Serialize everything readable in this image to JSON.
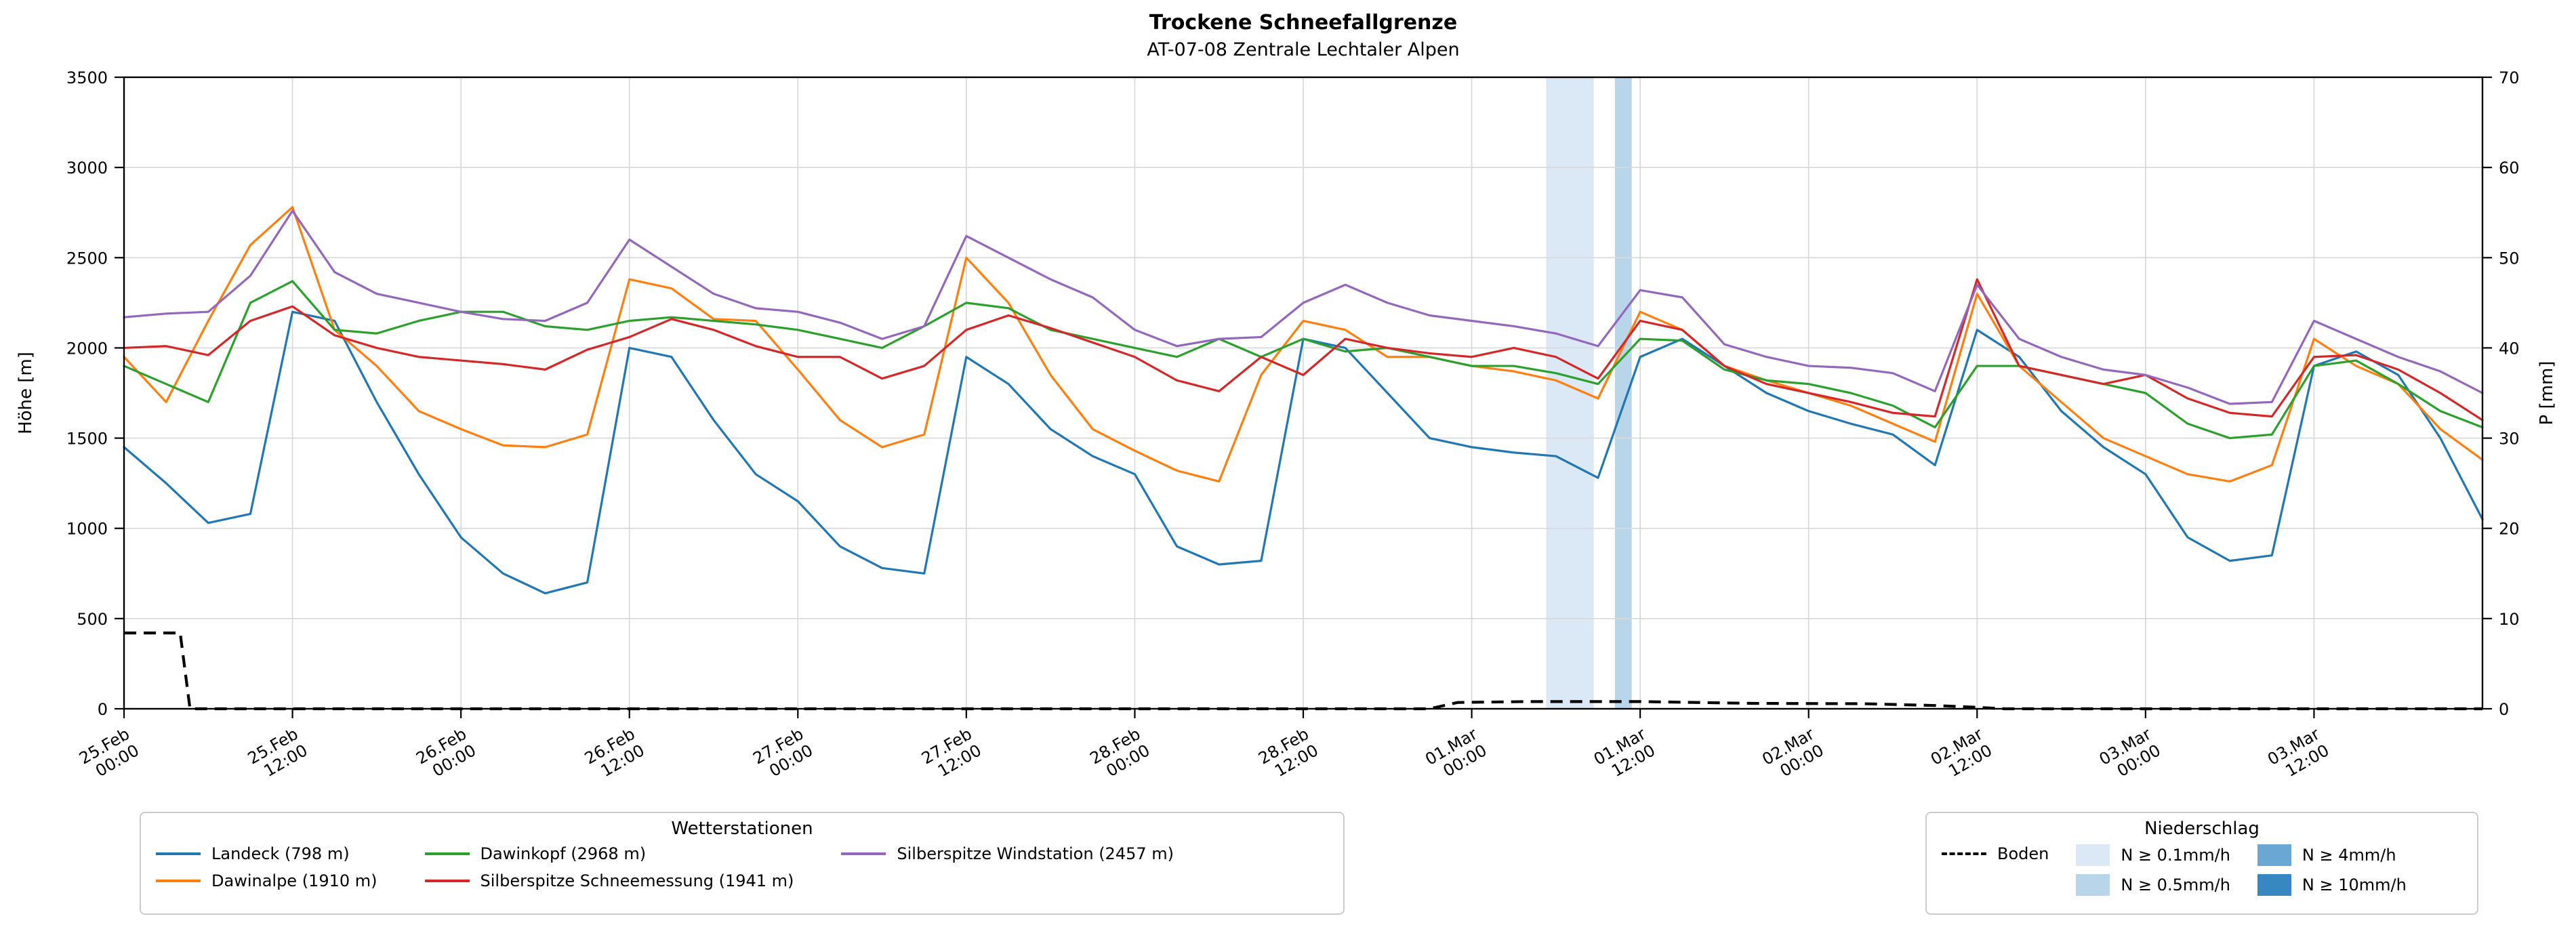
{
  "chart": {
    "title": "Trockene Schneefallgrenze",
    "subtitle": "AT-07-08 Zentrale Lechtaler Alpen",
    "y_left": {
      "label": "Höhe [m]",
      "min": 0,
      "max": 3500,
      "ticks": [
        0,
        500,
        1000,
        1500,
        2000,
        2500,
        3000,
        3500
      ]
    },
    "y_right": {
      "label": "P [mm]",
      "min": 0,
      "max": 70,
      "ticks": [
        0,
        10,
        20,
        30,
        40,
        50,
        60,
        70
      ]
    },
    "x": {
      "min_hours": 0,
      "max_hours": 168,
      "tick_step_hours": 12,
      "tick_labels": [
        [
          "25.Feb",
          "00:00"
        ],
        [
          "25.Feb",
          "12:00"
        ],
        [
          "26.Feb",
          "00:00"
        ],
        [
          "26.Feb",
          "12:00"
        ],
        [
          "27.Feb",
          "00:00"
        ],
        [
          "27.Feb",
          "12:00"
        ],
        [
          "28.Feb",
          "00:00"
        ],
        [
          "28.Feb",
          "12:00"
        ],
        [
          "01.Mar",
          "00:00"
        ],
        [
          "01.Mar",
          "12:00"
        ],
        [
          "02.Mar",
          "00:00"
        ],
        [
          "02.Mar",
          "12:00"
        ],
        [
          "03.Mar",
          "00:00"
        ],
        [
          "03.Mar",
          "12:00"
        ]
      ]
    },
    "grid": true
  },
  "chart_data": {
    "type": "line",
    "title": "Trockene Schneefallgrenze",
    "subtitle": "AT-07-08 Zentrale Lechtaler Alpen",
    "x_axis_start": "25.Feb 00:00",
    "x_axis_end": "04.Mar 00:00",
    "x_hours": [
      0,
      3,
      6,
      9,
      12,
      15,
      18,
      21,
      24,
      27,
      30,
      33,
      36,
      39,
      42,
      45,
      48,
      51,
      54,
      57,
      60,
      63,
      66,
      69,
      72,
      75,
      78,
      81,
      84,
      87,
      90,
      93,
      96,
      99,
      102,
      105,
      108,
      111,
      114,
      117,
      120,
      123,
      126,
      129,
      132,
      135,
      138,
      141,
      144,
      147,
      150,
      153,
      156,
      159,
      162,
      165,
      168
    ],
    "series": [
      {
        "name": "Landeck (798 m)",
        "color": "#1f77b4",
        "values": [
          1450,
          1250,
          1030,
          1080,
          2200,
          2150,
          1700,
          1300,
          950,
          750,
          640,
          700,
          2000,
          1950,
          1600,
          1300,
          1150,
          900,
          780,
          750,
          1950,
          1800,
          1550,
          1400,
          1300,
          900,
          800,
          820,
          2050,
          2000,
          1750,
          1500,
          1450,
          1420,
          1400,
          1280,
          1950,
          2050,
          1900,
          1750,
          1650,
          1580,
          1520,
          1350,
          2100,
          1950,
          1650,
          1450,
          1300,
          950,
          820,
          850,
          1900,
          1980,
          1850,
          1500,
          1050
        ]
      },
      {
        "name": "Dawinalpe (1910 m)",
        "color": "#ff7f0e",
        "values": [
          1950,
          1700,
          2150,
          2570,
          2780,
          2100,
          1900,
          1650,
          1550,
          1460,
          1450,
          1520,
          2380,
          2330,
          2160,
          2150,
          1880,
          1600,
          1450,
          1520,
          2500,
          2250,
          1850,
          1550,
          1430,
          1320,
          1260,
          1850,
          2150,
          2100,
          1950,
          1950,
          1900,
          1870,
          1820,
          1720,
          2200,
          2100,
          1900,
          1820,
          1750,
          1680,
          1580,
          1480,
          2300,
          1900,
          1700,
          1500,
          1400,
          1300,
          1260,
          1350,
          2050,
          1900,
          1800,
          1550,
          1380
        ]
      },
      {
        "name": "Dawinkopf (2968 m)",
        "color": "#2ca02c",
        "values": [
          1900,
          1800,
          1700,
          2250,
          2370,
          2100,
          2080,
          2150,
          2200,
          2200,
          2120,
          2100,
          2150,
          2170,
          2150,
          2130,
          2100,
          2050,
          2000,
          2120,
          2250,
          2220,
          2100,
          2050,
          2000,
          1950,
          2050,
          1950,
          2050,
          1980,
          2000,
          1950,
          1900,
          1900,
          1860,
          1800,
          2050,
          2040,
          1880,
          1820,
          1800,
          1750,
          1680,
          1560,
          1900,
          1900,
          1850,
          1800,
          1750,
          1580,
          1500,
          1520,
          1900,
          1930,
          1800,
          1650,
          1560
        ]
      },
      {
        "name": "Silberspitze Schneemessung (1941 m)",
        "color": "#d62728",
        "values": [
          2000,
          2010,
          1960,
          2150,
          2230,
          2070,
          2000,
          1950,
          1930,
          1910,
          1880,
          1990,
          2060,
          2160,
          2100,
          2010,
          1950,
          1950,
          1830,
          1900,
          2100,
          2180,
          2110,
          2030,
          1950,
          1820,
          1760,
          1950,
          1850,
          2050,
          2000,
          1970,
          1950,
          2000,
          1950,
          1830,
          2150,
          2100,
          1900,
          1800,
          1750,
          1700,
          1640,
          1620,
          2380,
          1900,
          1850,
          1800,
          1850,
          1720,
          1640,
          1620,
          1950,
          1960,
          1880,
          1750,
          1600
        ]
      },
      {
        "name": "Silberspitze Windstation (2457 m)",
        "color": "#9467bd",
        "values": [
          2170,
          2190,
          2200,
          2400,
          2760,
          2420,
          2300,
          2250,
          2200,
          2160,
          2150,
          2250,
          2600,
          2450,
          2300,
          2220,
          2200,
          2140,
          2050,
          2120,
          2620,
          2500,
          2380,
          2280,
          2100,
          2010,
          2050,
          2060,
          2250,
          2350,
          2250,
          2180,
          2150,
          2120,
          2080,
          2010,
          2320,
          2280,
          2020,
          1950,
          1900,
          1890,
          1860,
          1760,
          2350,
          2050,
          1950,
          1880,
          1850,
          1780,
          1690,
          1700,
          2150,
          2050,
          1950,
          1870,
          1750
        ]
      }
    ],
    "boden": {
      "name": "Boden",
      "color": "#000000",
      "style": "dashed",
      "points": [
        [
          0,
          420
        ],
        [
          4,
          420
        ],
        [
          4.7,
          0
        ],
        [
          93,
          0
        ],
        [
          95,
          35
        ],
        [
          100,
          40
        ],
        [
          108,
          40
        ],
        [
          116,
          30
        ],
        [
          124,
          28
        ],
        [
          129,
          18
        ],
        [
          132,
          8
        ],
        [
          134,
          0
        ],
        [
          168,
          0
        ]
      ]
    },
    "precip_bands": [
      {
        "start_hours": 101.3,
        "end_hours": 104.7,
        "level": "N ≥ 0.1mm/h"
      },
      {
        "start_hours": 106.2,
        "end_hours": 107.4,
        "level": "N ≥ 0.5mm/h"
      }
    ],
    "precip_levels": {
      "N ≥ 0.1mm/h": "#dbe9f6",
      "N ≥ 0.5mm/h": "#b9d5ea",
      "N ≥ 4mm/h": "#6aa7d4",
      "N ≥ 10mm/h": "#3787c0"
    }
  },
  "legends": {
    "stations": {
      "title": "Wetterstationen",
      "columns": [
        [
          {
            "label": "Landeck (798 m)",
            "swatch": "line",
            "color": "#1f77b4"
          },
          {
            "label": "Dawinalpe (1910 m)",
            "swatch": "line",
            "color": "#ff7f0e"
          }
        ],
        [
          {
            "label": "Dawinkopf (2968 m)",
            "swatch": "line",
            "color": "#2ca02c"
          },
          {
            "label": "Silberspitze Schneemessung (1941 m)",
            "swatch": "line",
            "color": "#d62728"
          }
        ],
        [
          {
            "label": "Silberspitze Windstation (2457 m)",
            "swatch": "line",
            "color": "#9467bd"
          }
        ]
      ]
    },
    "precip": {
      "title": "Niederschlag",
      "columns": [
        [
          {
            "label": "Boden",
            "swatch": "dash",
            "color": "#000000"
          }
        ],
        [
          {
            "label": "N ≥ 0.1mm/h",
            "swatch": "patch",
            "color": "#dbe9f6"
          },
          {
            "label": "N ≥ 0.5mm/h",
            "swatch": "patch",
            "color": "#b9d5ea"
          }
        ],
        [
          {
            "label": "N ≥ 4mm/h",
            "swatch": "patch",
            "color": "#6aa7d4"
          },
          {
            "label": "N ≥ 10mm/h",
            "swatch": "patch",
            "color": "#3787c0"
          }
        ]
      ]
    }
  }
}
